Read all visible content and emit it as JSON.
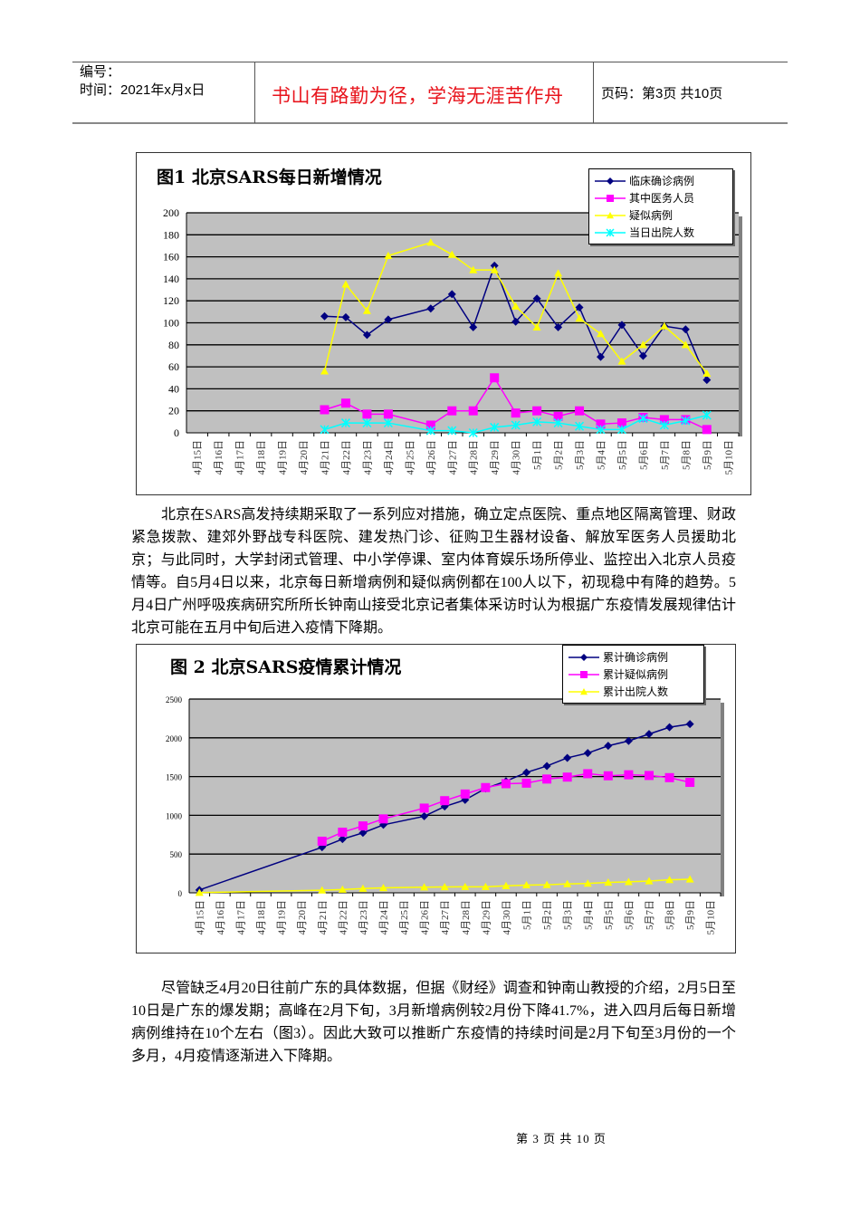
{
  "header": {
    "number_label": "编号：",
    "time_label": "时间：2021年x月x日",
    "motto": "书山有路勤为径，学海无涯苦作舟",
    "page_info": "页码：第3页  共10页"
  },
  "paragraphs": [
    "北京在SARS高发持续期采取了一系列应对措施，确立定点医院、重点地区隔离管理、财政紧急拨款、建郊外野战专科医院、建发热门诊、征购卫生器材设备、解放军医务人员援助北京；与此同时，大学封闭式管理、中小学停课、室内体育娱乐场所停业、监控出入北京人员疫情等。自5月4日以来，北京每日新增病例和疑似病例都在100人以下，初现稳中有降的趋势。5月4日广州呼吸疾病研究所所长钟南山接受北京记者集体采访时认为根据广东疫情发展规律估计北京可能在五月中旬后进入疫情下降期。",
    "尽管缺乏4月20日往前广东的具体数据，但据《财经》调查和钟南山教授的介绍，2月5日至10日是广东的爆发期；高峰在2月下旬，3月新增病例较2月份下降41.7%，进入四月后每日新增病例维持在10个左右（图3）。因此大致可以推断广东疫情的持续时间是2月下旬至3月份的一个多月，4月疫情逐渐进入下降期。"
  ],
  "footer": "第 3 页 共 10 页",
  "chart_data": [
    {
      "type": "line",
      "title": "图1 北京SARS每日新增情况",
      "categories": [
        "4月15日",
        "4月16日",
        "4月17日",
        "4月18日",
        "4月19日",
        "4月20日",
        "4月21日",
        "4月22日",
        "4月23日",
        "4月24日",
        "4月25日",
        "4月26日",
        "4月27日",
        "4月28日",
        "4月29日",
        "4月30日",
        "5月1日",
        "5月2日",
        "5月3日",
        "5月4日",
        "5月5日",
        "5月6日",
        "5月7日",
        "5月8日",
        "5月9日",
        "5月10日"
      ],
      "ylim": [
        0,
        200
      ],
      "yticks": [
        0,
        20,
        40,
        60,
        80,
        100,
        120,
        140,
        160,
        180,
        200
      ],
      "grid": true,
      "legend": "top-right",
      "plot_background": "#c0c0c0",
      "series": [
        {
          "name": "临床确诊病例",
          "color": "#000080",
          "marker": "diamond",
          "values": [
            null,
            null,
            null,
            null,
            null,
            null,
            106,
            105,
            89,
            103,
            null,
            113,
            126,
            96,
            152,
            101,
            122,
            96,
            114,
            69,
            98,
            70,
            97,
            94,
            48,
            null
          ]
        },
        {
          "name": "其中医务人员",
          "color": "#ff00ff",
          "marker": "square",
          "values": [
            null,
            null,
            null,
            null,
            null,
            null,
            21,
            27,
            17,
            17,
            null,
            7,
            20,
            20,
            50,
            18,
            20,
            15,
            20,
            8,
            9,
            14,
            12,
            12,
            3,
            null
          ]
        },
        {
          "name": "疑似病例",
          "color": "#ffff00",
          "marker": "triangle",
          "values": [
            null,
            null,
            null,
            null,
            null,
            null,
            56,
            135,
            111,
            161,
            null,
            173,
            162,
            148,
            148,
            115,
            96,
            145,
            104,
            90,
            65,
            80,
            97,
            80,
            54,
            null
          ]
        },
        {
          "name": "当日出院人数",
          "color": "#00ffff",
          "marker": "star",
          "values": [
            null,
            null,
            null,
            null,
            null,
            null,
            3,
            9,
            9,
            9,
            null,
            2,
            2,
            0,
            5,
            7,
            10,
            9,
            6,
            3,
            3,
            13,
            7,
            11,
            16,
            null
          ]
        }
      ]
    },
    {
      "type": "line",
      "title": "图 2  北京SARS疫情累计情况",
      "categories": [
        "4月15日",
        "4月16日",
        "4月17日",
        "4月18日",
        "4月19日",
        "4月20日",
        "4月21日",
        "4月22日",
        "4月23日",
        "4月24日",
        "4月25日",
        "4月26日",
        "4月27日",
        "4月28日",
        "4月29日",
        "4月30日",
        "5月1日",
        "5月2日",
        "5月3日",
        "5月4日",
        "5月5日",
        "5月6日",
        "5月7日",
        "5月8日",
        "5月9日",
        "5月10日"
      ],
      "ylim": [
        0,
        2500
      ],
      "yticks": [
        0,
        500,
        1000,
        1500,
        2000,
        2500
      ],
      "grid": true,
      "legend": "top-right",
      "plot_background": "#c0c0c0",
      "series": [
        {
          "name": "累计确诊病例",
          "color": "#000080",
          "marker": "diamond",
          "values": [
            37,
            null,
            null,
            null,
            null,
            null,
            588,
            693,
            774,
            877,
            null,
            988,
            1114,
            1199,
            1347,
            1440,
            1553,
            1636,
            1741,
            1803,
            1897,
            1960,
            2049,
            2136,
            2177,
            null
          ]
        },
        {
          "name": "累计疑似病例",
          "color": "#ff00ff",
          "marker": "square",
          "values": [
            null,
            null,
            null,
            null,
            null,
            null,
            666,
            782,
            863,
            954,
            null,
            1093,
            1189,
            1275,
            1358,
            1408,
            1415,
            1468,
            1493,
            1537,
            1510,
            1523,
            1514,
            1486,
            1425,
            null
          ]
        },
        {
          "name": "累计出院人数",
          "color": "#ffff00",
          "marker": "triangle",
          "values": [
            3,
            null,
            null,
            null,
            null,
            null,
            33,
            43,
            55,
            64,
            null,
            73,
            76,
            78,
            78,
            90,
            100,
            103,
            115,
            121,
            134,
            141,
            152,
            168,
            175,
            null
          ]
        }
      ]
    }
  ]
}
